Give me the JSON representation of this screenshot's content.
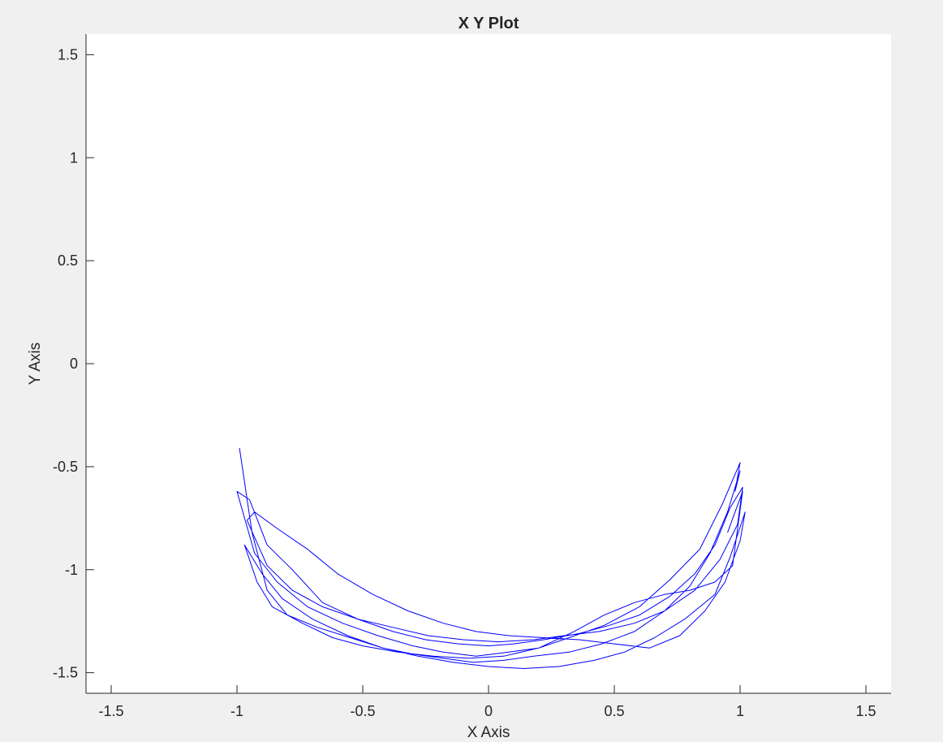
{
  "chart_data": {
    "type": "line",
    "title": "X Y Plot",
    "xlabel": "X Axis",
    "ylabel": "Y Axis",
    "xlim": [
      -1.6,
      1.6
    ],
    "ylim": [
      -1.6,
      1.6
    ],
    "xticks": [
      -1.5,
      -1,
      -0.5,
      0,
      0.5,
      1,
      1.5
    ],
    "xtick_labels": [
      "-1.5",
      "-1",
      "-0.5",
      "0",
      "0.5",
      "1",
      "1.5"
    ],
    "yticks": [
      -1.5,
      -1,
      -0.5,
      0,
      0.5,
      1,
      1.5
    ],
    "ytick_labels": [
      "-1.5",
      "-1",
      "-0.5",
      "0",
      "0.5",
      "1",
      "1.5"
    ],
    "grid": false,
    "line_color": "#0000ff",
    "background_color": "#f0f0f0",
    "axes_color": "#ffffff",
    "series": [
      {
        "x": [
          -0.99,
          -0.94,
          -0.88,
          -0.8,
          -0.68,
          -0.55,
          -0.42,
          -0.3,
          -0.18,
          -0.06,
          0.06,
          0.18,
          0.32,
          0.45,
          0.58,
          0.7,
          0.8,
          0.88,
          0.95,
          1.0,
          0.98,
          1.0,
          0.93,
          0.84,
          0.72,
          0.6,
          0.46,
          0.32,
          0.2,
          0.08,
          -0.05,
          -0.18,
          -0.3,
          -0.44,
          -0.58,
          -0.72,
          -0.84,
          -0.93,
          -1.0,
          -0.95,
          -0.88,
          -0.78,
          -0.66,
          -0.52,
          -0.38,
          -0.25,
          -0.12,
          0.0,
          0.1,
          0.22,
          0.36,
          0.48,
          0.6,
          0.72,
          0.82,
          0.9,
          0.96,
          1.01,
          0.99,
          0.92,
          0.82,
          0.7,
          0.58,
          0.44,
          0.3,
          0.18,
          0.04,
          -0.1,
          -0.24,
          -0.38,
          -0.52,
          -0.66,
          -0.78,
          -0.88,
          -0.96,
          -0.93,
          -0.84,
          -0.72,
          -0.6,
          -0.46,
          -0.32,
          -0.18,
          -0.05,
          0.08,
          0.22,
          0.36,
          0.5,
          0.64,
          0.76,
          0.86,
          0.94,
          1.0,
          1.02,
          0.96,
          0.9,
          0.78,
          0.66,
          0.54,
          0.42,
          0.28,
          0.14,
          0.0,
          -0.14,
          -0.28,
          -0.42,
          -0.56,
          -0.7,
          -0.82,
          -0.9,
          -0.97,
          -0.92,
          -0.86,
          -0.74,
          -0.62,
          -0.5,
          -0.36,
          -0.22,
          -0.08,
          0.06,
          0.2,
          0.34,
          0.46,
          0.58,
          0.7,
          0.8,
          0.9,
          0.97,
          1.01,
          0.95
        ],
        "y": [
          -0.41,
          -0.82,
          -1.1,
          -1.22,
          -1.28,
          -1.33,
          -1.38,
          -1.41,
          -1.43,
          -1.45,
          -1.44,
          -1.42,
          -1.4,
          -1.36,
          -1.3,
          -1.2,
          -1.08,
          -0.92,
          -0.72,
          -0.52,
          -0.62,
          -0.48,
          -0.68,
          -0.9,
          -1.05,
          -1.18,
          -1.27,
          -1.33,
          -1.38,
          -1.4,
          -1.42,
          -1.4,
          -1.37,
          -1.32,
          -1.26,
          -1.18,
          -1.06,
          -0.92,
          -0.62,
          -0.66,
          -0.88,
          -1.0,
          -1.16,
          -1.24,
          -1.3,
          -1.34,
          -1.36,
          -1.37,
          -1.36,
          -1.34,
          -1.31,
          -1.27,
          -1.22,
          -1.13,
          -1.02,
          -0.88,
          -0.7,
          -0.6,
          -0.78,
          -0.95,
          -1.1,
          -1.2,
          -1.26,
          -1.3,
          -1.32,
          -1.34,
          -1.35,
          -1.34,
          -1.32,
          -1.28,
          -1.24,
          -1.18,
          -1.1,
          -0.98,
          -0.76,
          -0.72,
          -0.8,
          -0.9,
          -1.02,
          -1.12,
          -1.2,
          -1.26,
          -1.3,
          -1.32,
          -1.33,
          -1.34,
          -1.36,
          -1.38,
          -1.32,
          -1.2,
          -1.06,
          -0.86,
          -0.72,
          -0.94,
          -1.12,
          -1.24,
          -1.33,
          -1.4,
          -1.44,
          -1.47,
          -1.48,
          -1.47,
          -1.45,
          -1.42,
          -1.38,
          -1.32,
          -1.24,
          -1.14,
          -1.02,
          -0.88,
          -1.06,
          -1.18,
          -1.26,
          -1.33,
          -1.37,
          -1.4,
          -1.42,
          -1.43,
          -1.42,
          -1.38,
          -1.3,
          -1.22,
          -1.16,
          -1.12,
          -1.1,
          -1.06,
          -0.98,
          -0.62,
          -0.82
        ]
      }
    ]
  }
}
